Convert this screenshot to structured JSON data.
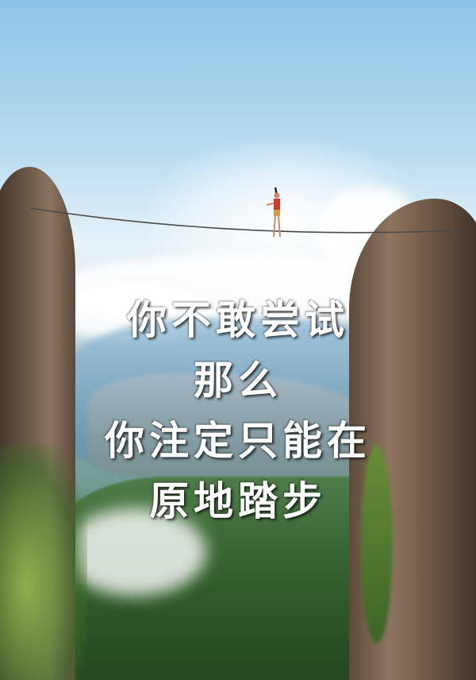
{
  "poster": {
    "quote_lines": [
      "你不敢尝试",
      "那么",
      "你注定只能在",
      "原地踏步"
    ]
  }
}
